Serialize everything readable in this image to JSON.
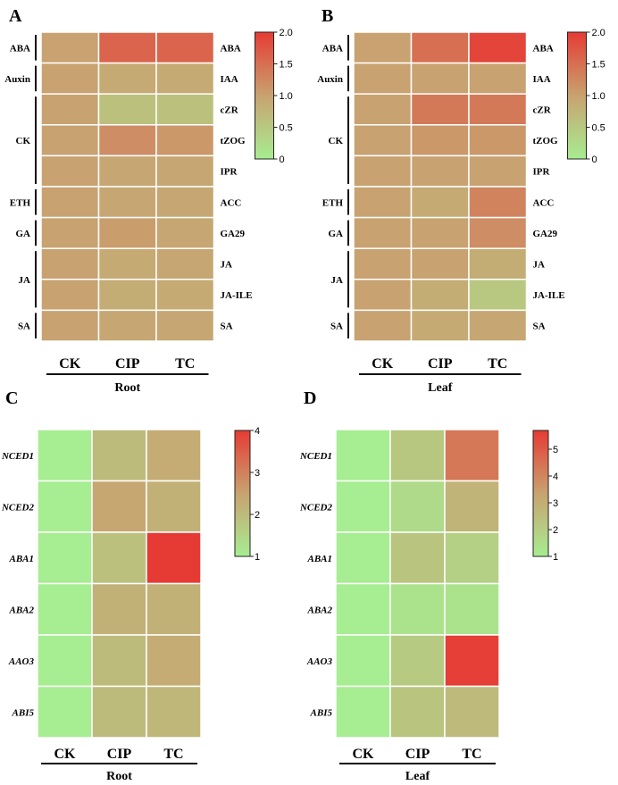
{
  "chart_data": [
    {
      "type": "heatmap",
      "panel": "A",
      "tissue": "Root",
      "columns": [
        "CK",
        "CIP",
        "TC"
      ],
      "groups": [
        {
          "name": "ABA",
          "rows": [
            "ABA"
          ]
        },
        {
          "name": "Auxin",
          "rows": [
            "IAA"
          ]
        },
        {
          "name": "CK",
          "rows": [
            "cZR",
            "tZOG",
            "IPR"
          ]
        },
        {
          "name": "ETH",
          "rows": [
            "ACC"
          ]
        },
        {
          "name": "GA",
          "rows": [
            "GA29"
          ]
        },
        {
          "name": "JA",
          "rows": [
            "JA",
            "JA-ILE"
          ]
        },
        {
          "name": "SA",
          "rows": [
            "SA"
          ]
        }
      ],
      "values": [
        [
          1.0,
          1.6,
          1.6
        ],
        [
          1.0,
          0.9,
          0.9
        ],
        [
          1.0,
          0.6,
          0.6
        ],
        [
          1.0,
          1.2,
          1.1
        ],
        [
          1.0,
          0.95,
          0.95
        ],
        [
          1.0,
          0.95,
          0.95
        ],
        [
          1.0,
          1.05,
          0.95
        ],
        [
          1.0,
          0.9,
          0.95
        ],
        [
          1.0,
          0.85,
          0.9
        ],
        [
          1.0,
          0.95,
          0.95
        ]
      ],
      "colorbar": {
        "min": 0,
        "max": 2.0,
        "ticks": [
          "0",
          "0.5",
          "1.0",
          "1.5",
          "2.0"
        ]
      }
    },
    {
      "type": "heatmap",
      "panel": "B",
      "tissue": "Leaf",
      "columns": [
        "CK",
        "CIP",
        "TC"
      ],
      "groups": [
        {
          "name": "ABA",
          "rows": [
            "ABA"
          ]
        },
        {
          "name": "Auxin",
          "rows": [
            "IAA"
          ]
        },
        {
          "name": "CK",
          "rows": [
            "cZR",
            "tZOG",
            "IPR"
          ]
        },
        {
          "name": "ETH",
          "rows": [
            "ACC"
          ]
        },
        {
          "name": "GA",
          "rows": [
            "GA29"
          ]
        },
        {
          "name": "JA",
          "rows": [
            "JA",
            "JA-ILE"
          ]
        },
        {
          "name": "SA",
          "rows": [
            "SA"
          ]
        }
      ],
      "values": [
        [
          1.0,
          1.5,
          1.9
        ],
        [
          1.0,
          1.0,
          1.0
        ],
        [
          1.0,
          1.4,
          1.4
        ],
        [
          1.0,
          1.1,
          1.1
        ],
        [
          1.0,
          1.0,
          1.0
        ],
        [
          1.0,
          0.9,
          1.3
        ],
        [
          1.0,
          1.0,
          1.2
        ],
        [
          1.0,
          1.0,
          0.85
        ],
        [
          1.0,
          0.85,
          0.5
        ],
        [
          1.0,
          0.9,
          0.95
        ]
      ],
      "colorbar": {
        "min": 0,
        "max": 2.0,
        "ticks": [
          "0",
          "0.5",
          "1.0",
          "1.5",
          "2.0"
        ]
      }
    },
    {
      "type": "heatmap",
      "panel": "C",
      "tissue": "Root",
      "columns": [
        "CK",
        "CIP",
        "TC"
      ],
      "rows": [
        "NCED1",
        "NCED2",
        "ABA1",
        "ABA2",
        "AAO3",
        "ABI5"
      ],
      "values": [
        [
          1.0,
          2.0,
          2.3
        ],
        [
          1.0,
          2.4,
          2.2
        ],
        [
          1.0,
          1.9,
          4.0
        ],
        [
          1.0,
          2.2,
          2.2
        ],
        [
          1.0,
          2.0,
          2.3
        ],
        [
          1.0,
          2.0,
          2.1
        ]
      ],
      "colorbar": {
        "min": 1,
        "max": 4,
        "ticks": [
          "1",
          "2",
          "3",
          "4"
        ]
      }
    },
    {
      "type": "heatmap",
      "panel": "D",
      "tissue": "Leaf",
      "columns": [
        "CK",
        "CIP",
        "TC"
      ],
      "rows": [
        "NCED1",
        "NCED2",
        "ABA1",
        "ABA2",
        "AAO3",
        "ABI5"
      ],
      "values": [
        [
          1.0,
          2.2,
          4.3
        ],
        [
          1.0,
          1.6,
          2.8
        ],
        [
          1.0,
          2.3,
          1.9
        ],
        [
          1.0,
          1.3,
          1.3
        ],
        [
          1.0,
          2.1,
          5.6
        ],
        [
          1.0,
          2.3,
          2.6
        ]
      ],
      "colorbar": {
        "min": 1,
        "max": 5.7,
        "ticks": [
          "1",
          "2",
          "3",
          "4",
          "5"
        ]
      }
    }
  ],
  "colors": {
    "low": "#a7ed91",
    "mid": "#c8a270",
    "high": "#e63b34"
  }
}
